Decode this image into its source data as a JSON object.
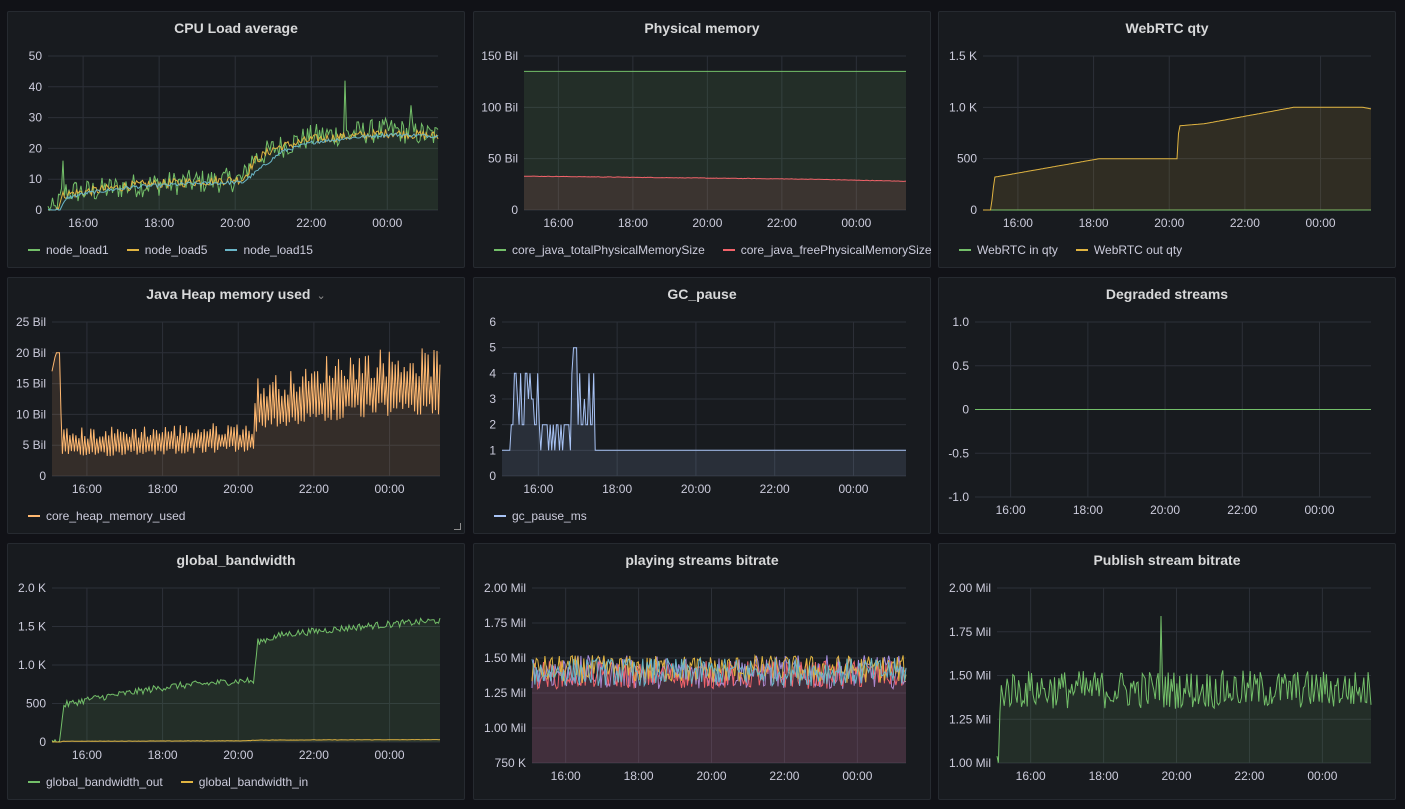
{
  "colors": {
    "green": "#73bf69",
    "yellow": "#e0b441",
    "blue": "#6ab6c8",
    "red": "#f2636a",
    "orange": "#ffb870",
    "periwinkle": "#a8c3f5",
    "lavender": "#a48cdb",
    "grid": "#2c3038",
    "axis_text": "#ccccdc"
  },
  "panels": [
    {
      "id": "cpu",
      "title": "CPU Load average",
      "has_menu": false,
      "chart_data": {
        "type": "line",
        "x_ticks": [
          "16:00",
          "18:00",
          "20:00",
          "22:00",
          "00:00"
        ],
        "y_ticks": [
          "0",
          "10",
          "20",
          "30",
          "40",
          "50"
        ],
        "ylim": [
          0,
          50
        ],
        "series": [
          {
            "name": "node_load1",
            "color": "green",
            "profile": [
              [
                0,
                0
              ],
              [
                0.02,
                0
              ],
              [
                0.04,
                6
              ],
              [
                0.1,
                6
              ],
              [
                0.22,
                8
              ],
              [
                0.36,
                9
              ],
              [
                0.5,
                10
              ],
              [
                0.52,
                16
              ],
              [
                0.58,
                20
              ],
              [
                0.68,
                24
              ],
              [
                0.78,
                25
              ],
              [
                0.88,
                26
              ],
              [
                1,
                24
              ]
            ],
            "noise": 4,
            "fill": true,
            "spikes": [
              [
                0.04,
                16
              ],
              [
                0.76,
                42
              ],
              [
                0.93,
                34
              ]
            ]
          },
          {
            "name": "node_load5",
            "color": "yellow",
            "profile": [
              [
                0,
                0
              ],
              [
                0.02,
                0
              ],
              [
                0.04,
                5
              ],
              [
                0.1,
                6
              ],
              [
                0.22,
                8
              ],
              [
                0.36,
                9
              ],
              [
                0.5,
                10
              ],
              [
                0.53,
                16
              ],
              [
                0.58,
                20
              ],
              [
                0.68,
                23
              ],
              [
                0.78,
                24
              ],
              [
                0.88,
                25
              ],
              [
                1,
                24
              ]
            ],
            "noise": 1.5,
            "fill": false
          },
          {
            "name": "node_load15",
            "color": "blue",
            "profile": [
              [
                0,
                0
              ],
              [
                0.03,
                0
              ],
              [
                0.05,
                4
              ],
              [
                0.1,
                5.5
              ],
              [
                0.22,
                7.5
              ],
              [
                0.36,
                8.5
              ],
              [
                0.5,
                9
              ],
              [
                0.55,
                14
              ],
              [
                0.6,
                19
              ],
              [
                0.68,
                22
              ],
              [
                0.78,
                23.5
              ],
              [
                0.88,
                24.5
              ],
              [
                1,
                24
              ]
            ],
            "noise": 0.6,
            "fill": false
          }
        ]
      }
    },
    {
      "id": "mem",
      "title": "Physical memory",
      "has_menu": false,
      "chart_data": {
        "type": "line",
        "x_ticks": [
          "16:00",
          "18:00",
          "20:00",
          "22:00",
          "00:00"
        ],
        "y_ticks": [
          "0",
          "50 Bil",
          "100 Bil",
          "150 Bil"
        ],
        "ylim": [
          0,
          150
        ],
        "series": [
          {
            "name": "core_java_totalPhysicalMemorySize",
            "color": "green",
            "profile": [
              [
                0,
                135
              ],
              [
                1,
                135
              ]
            ],
            "noise": 0,
            "fill": true
          },
          {
            "name": "core_java_freePhysicalMemorySize",
            "color": "red",
            "profile": [
              [
                0,
                33
              ],
              [
                0.5,
                31
              ],
              [
                0.75,
                30
              ],
              [
                1,
                28
              ]
            ],
            "noise": 0.2,
            "fill": true
          }
        ]
      }
    },
    {
      "id": "webrtc",
      "title": "WebRTC qty",
      "has_menu": false,
      "chart_data": {
        "type": "line",
        "x_ticks": [
          "16:00",
          "18:00",
          "20:00",
          "22:00",
          "00:00"
        ],
        "y_ticks": [
          "0",
          "500",
          "1.0 K",
          "1.5 K"
        ],
        "ylim": [
          0,
          1500
        ],
        "series": [
          {
            "name": "WebRTC in qty",
            "color": "green",
            "profile": [
              [
                0,
                0
              ],
              [
                1,
                0
              ]
            ],
            "noise": 0,
            "fill": false
          },
          {
            "name": "WebRTC out qty",
            "color": "yellow",
            "profile": [
              [
                0,
                0
              ],
              [
                0.02,
                0
              ],
              [
                0.03,
                320
              ],
              [
                0.3,
                500
              ],
              [
                0.5,
                500
              ],
              [
                0.505,
                820
              ],
              [
                0.57,
                840
              ],
              [
                0.8,
                1000
              ],
              [
                0.98,
                1000
              ],
              [
                1,
                985
              ]
            ],
            "noise": 0,
            "fill": true
          }
        ]
      }
    },
    {
      "id": "heap",
      "title": "Java Heap memory used",
      "has_menu": true,
      "chart_data": {
        "type": "line",
        "x_ticks": [
          "16:00",
          "18:00",
          "20:00",
          "22:00",
          "00:00"
        ],
        "y_ticks": [
          "0",
          "5 Bil",
          "10 Bil",
          "15 Bil",
          "20 Bil",
          "25 Bil"
        ],
        "ylim": [
          0,
          25
        ],
        "series": [
          {
            "name": "core_heap_memory_used",
            "color": "orange",
            "profile": [
              [
                0,
                17
              ],
              [
                0.01,
                20
              ],
              [
                0.02,
                20
              ],
              [
                0.025,
                4
              ],
              [
                0.52,
                5
              ],
              [
                0.53,
                9
              ],
              [
                0.7,
                11
              ],
              [
                0.85,
                12
              ],
              [
                1,
                12
              ]
            ],
            "noise": 0,
            "fill": true,
            "sawtooth": true
          }
        ]
      }
    },
    {
      "id": "gc",
      "title": "GC_pause",
      "has_menu": false,
      "chart_data": {
        "type": "line",
        "x_ticks": [
          "16:00",
          "18:00",
          "20:00",
          "22:00",
          "00:00"
        ],
        "y_ticks": [
          "0",
          "1",
          "2",
          "3",
          "4",
          "5",
          "6"
        ],
        "ylim": [
          0,
          6
        ],
        "series": [
          {
            "name": "gc_pause_ms",
            "color": "periwinkle",
            "profile": [
              [
                0,
                1
              ],
              [
                1,
                1
              ]
            ],
            "noise": 0,
            "fill": true,
            "gc": true
          }
        ]
      }
    },
    {
      "id": "degraded",
      "title": "Degraded streams",
      "has_menu": false,
      "chart_data": {
        "type": "line",
        "x_ticks": [
          "16:00",
          "18:00",
          "20:00",
          "22:00",
          "00:00"
        ],
        "y_ticks": [
          "-1.0",
          "-0.5",
          "0",
          "0.5",
          "1.0"
        ],
        "ylim": [
          -1,
          1
        ],
        "series": [
          {
            "color": "green",
            "profile": [
              [
                0,
                0
              ],
              [
                1,
                0
              ]
            ],
            "noise": 0,
            "fill": false
          }
        ]
      }
    },
    {
      "id": "bandwidth",
      "title": "global_bandwidth",
      "has_menu": false,
      "chart_data": {
        "type": "line",
        "x_ticks": [
          "16:00",
          "18:00",
          "20:00",
          "22:00",
          "00:00"
        ],
        "y_ticks": [
          "0",
          "500",
          "1.0 K",
          "1.5 K",
          "2.0 K"
        ],
        "ylim": [
          0,
          2000
        ],
        "series": [
          {
            "name": "global_bandwidth_out",
            "color": "green",
            "profile": [
              [
                0,
                0
              ],
              [
                0.02,
                0
              ],
              [
                0.03,
                480
              ],
              [
                0.1,
                560
              ],
              [
                0.3,
                720
              ],
              [
                0.5,
                800
              ],
              [
                0.52,
                780
              ],
              [
                0.53,
                1300
              ],
              [
                0.6,
                1400
              ],
              [
                0.8,
                1500
              ],
              [
                1,
                1580
              ]
            ],
            "noise": 45,
            "fill": true
          },
          {
            "name": "global_bandwidth_in",
            "color": "yellow",
            "profile": [
              [
                0,
                0
              ],
              [
                0.02,
                0
              ],
              [
                0.03,
                10
              ],
              [
                0.5,
                15
              ],
              [
                0.53,
                25
              ],
              [
                1,
                30
              ]
            ],
            "noise": 2,
            "fill": false
          }
        ]
      }
    },
    {
      "id": "playing",
      "title": "playing streams bitrate",
      "has_menu": false,
      "chart_data": {
        "type": "line",
        "x_ticks": [
          "16:00",
          "18:00",
          "20:00",
          "22:00",
          "00:00"
        ],
        "y_ticks": [
          "750 K",
          "1.00 Mil",
          "1.25 Mil",
          "1.50 Mil",
          "1.75 Mil",
          "2.00 Mil"
        ],
        "ylim": [
          0.75,
          2.0
        ],
        "multi": true,
        "series": [
          {
            "color": "lavender",
            "profile": [
              [
                0,
                1.4
              ],
              [
                1,
                1.4
              ]
            ],
            "noise": 0.12,
            "fill": true
          },
          {
            "color": "red",
            "profile": [
              [
                0,
                1.38
              ],
              [
                1,
                1.38
              ]
            ],
            "noise": 0.1,
            "fill": true
          },
          {
            "color": "yellow",
            "profile": [
              [
                0,
                1.42
              ],
              [
                1,
                1.42
              ]
            ],
            "noise": 0.1,
            "fill": false
          },
          {
            "color": "blue",
            "profile": [
              [
                0,
                1.4
              ],
              [
                1,
                1.4
              ]
            ],
            "noise": 0.1,
            "fill": false
          }
        ]
      }
    },
    {
      "id": "publish",
      "title": "Publish stream bitrate",
      "has_menu": false,
      "chart_data": {
        "type": "line",
        "x_ticks": [
          "16:00",
          "18:00",
          "20:00",
          "22:00",
          "00:00"
        ],
        "y_ticks": [
          "1.00 Mil",
          "1.25 Mil",
          "1.50 Mil",
          "1.75 Mil",
          "2.00 Mil"
        ],
        "ylim": [
          1.0,
          2.0
        ],
        "series": [
          {
            "color": "green",
            "profile": [
              [
                0,
                1.0
              ],
              [
                0.005,
                1.0
              ],
              [
                0.01,
                1.42
              ],
              [
                1,
                1.42
              ]
            ],
            "noise": 0.11,
            "fill": true,
            "spikes": [
              [
                0.44,
                1.84
              ]
            ]
          }
        ]
      }
    }
  ]
}
